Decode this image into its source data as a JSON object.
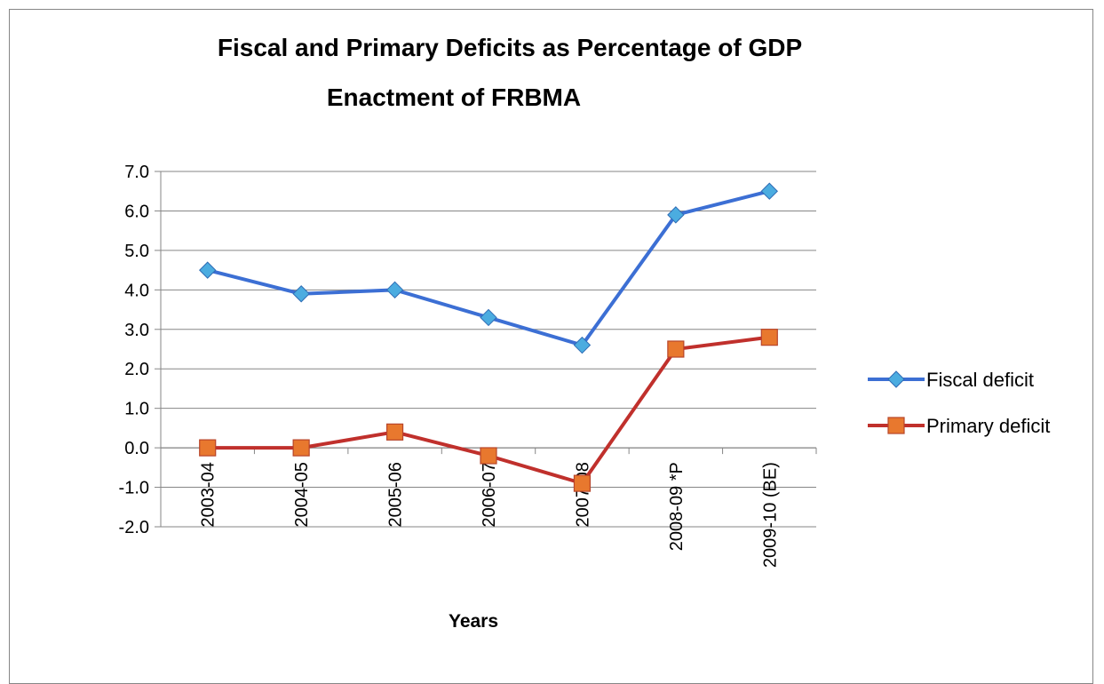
{
  "chart_data": {
    "type": "line",
    "title": "Fiscal and Primary Deficits as Percentage of GDP",
    "subtitle": "Enactment of FRBMA",
    "xlabel": "Years",
    "ylabel": "",
    "categories": [
      "2003-04",
      "2004-05",
      "2005-06",
      "2006-07",
      "2007-08",
      "2008-09 *P",
      "2009-10 (BE)"
    ],
    "ylim": [
      -2.0,
      7.0
    ],
    "yticks": [
      "-2.0",
      "-1.0",
      "0.0",
      "1.0",
      "2.0",
      "3.0",
      "4.0",
      "5.0",
      "6.0",
      "7.0"
    ],
    "grid": "horizontal",
    "legend_position": "right",
    "series": [
      {
        "name": "Fiscal deficit",
        "values": [
          4.5,
          3.9,
          4.0,
          3.3,
          2.6,
          5.9,
          6.5
        ],
        "color": "#3C6FD4",
        "marker_color": "#4BACE0",
        "marker": "diamond"
      },
      {
        "name": "Primary deficit",
        "values": [
          0.0,
          0.0,
          0.4,
          -0.2,
          -0.9,
          2.5,
          2.8
        ],
        "color": "#C0302C",
        "marker_color": "#E8782E",
        "marker": "square"
      }
    ]
  }
}
